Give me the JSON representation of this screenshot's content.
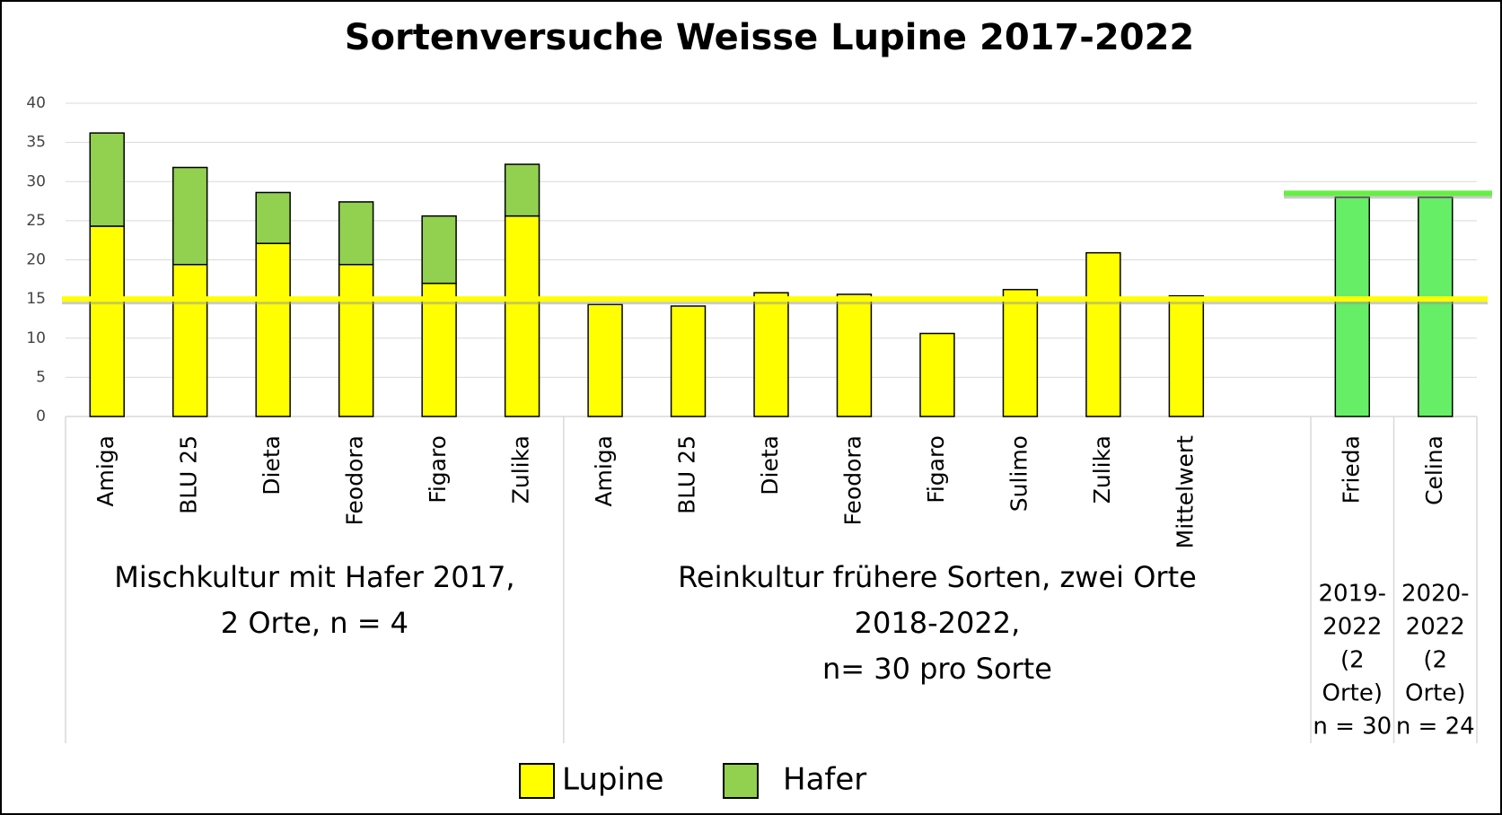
{
  "chart_data": {
    "type": "bar",
    "stacked": true,
    "title": "Sortenversuche Weisse Lupine 2017-2022",
    "categories": [
      "Amiga",
      "BLU 25",
      "Dieta",
      "Feodora",
      "Figaro",
      "Zulika",
      "Amiga",
      "BLU 25",
      "Dieta",
      "Feodora",
      "Figaro",
      "Sulimo",
      "Zulika",
      "Mittelwert",
      null,
      "Frieda",
      "Celina"
    ],
    "series": [
      {
        "name": "Lupine",
        "color": "#ffff00",
        "bar_colors": [
          "#ffff00",
          "#ffff00",
          "#ffff00",
          "#ffff00",
          "#ffff00",
          "#ffff00",
          "#ffff00",
          "#ffff00",
          "#ffff00",
          "#ffff00",
          "#ffff00",
          "#ffff00",
          "#ffff00",
          "#ffff00",
          null,
          "#66ee66",
          "#66ee66"
        ],
        "values": [
          24.3,
          19.4,
          22.1,
          19.4,
          17,
          25.6,
          14.3,
          14.1,
          15.8,
          15.6,
          10.6,
          16.2,
          20.9,
          15.4,
          null,
          28,
          28
        ]
      },
      {
        "name": "Hafer",
        "color": "#92d050",
        "values": [
          11.9,
          12.4,
          6.5,
          8,
          8.6,
          6.6,
          null,
          null,
          null,
          null,
          null,
          null,
          null,
          null,
          null,
          null,
          null
        ]
      }
    ],
    "groups": [
      {
        "start": 0,
        "end": 5,
        "lines": [
          "Mischkultur mit Hafer 2017,",
          "2 Orte, n = 4"
        ]
      },
      {
        "start": 6,
        "end": 14,
        "lines": [
          "Reinkultur frühere Sorten, zwei Orte",
          "2018-2022,",
          "n= 30 pro Sorte"
        ]
      },
      {
        "start": 15,
        "end": 15,
        "lines": [
          "2019-",
          "2022",
          "(2",
          "Orte)",
          "n = 30"
        ]
      },
      {
        "start": 16,
        "end": 16,
        "lines": [
          "2020-",
          "2022",
          "(2",
          "Orte)",
          "n = 24"
        ]
      }
    ],
    "reference_lines": [
      {
        "value": 15,
        "color": "#ffff00"
      },
      {
        "value": 28.5,
        "color": "#66ee44"
      }
    ],
    "ylim": [
      0,
      40
    ],
    "yticks": [
      0,
      5,
      10,
      15,
      20,
      25,
      30,
      35,
      40
    ],
    "grid": true,
    "legend": "bottom"
  }
}
